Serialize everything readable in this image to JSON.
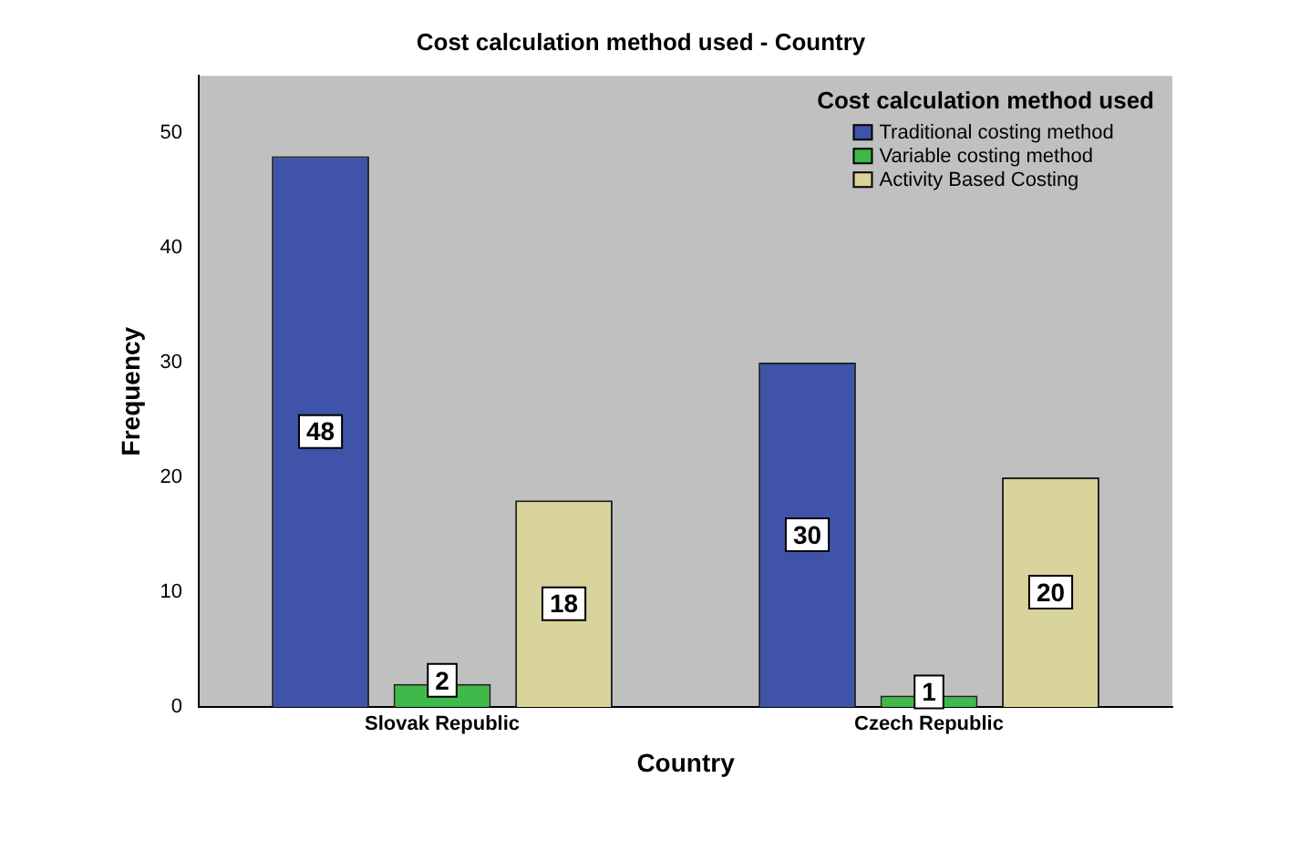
{
  "chart_data": {
    "type": "bar",
    "title": "Cost calculation method used - Country",
    "xlabel": "Country",
    "ylabel": "Frequency",
    "legend_title": "Cost calculation method used",
    "categories": [
      "Slovak Republic",
      "Czech Republic"
    ],
    "series": [
      {
        "name": "Traditional costing method",
        "color": "#3f54a8",
        "values": [
          48,
          30
        ]
      },
      {
        "name": "Variable costing method",
        "color": "#3fb94a",
        "values": [
          2,
          1
        ]
      },
      {
        "name": "Activity Based Costing",
        "color": "#d9d39c",
        "values": [
          18,
          20
        ]
      }
    ],
    "ylim": [
      0,
      55
    ],
    "yticks": [
      0,
      10,
      20,
      30,
      40,
      50
    ],
    "grid": false,
    "legend": "top right",
    "data_labels": true
  }
}
